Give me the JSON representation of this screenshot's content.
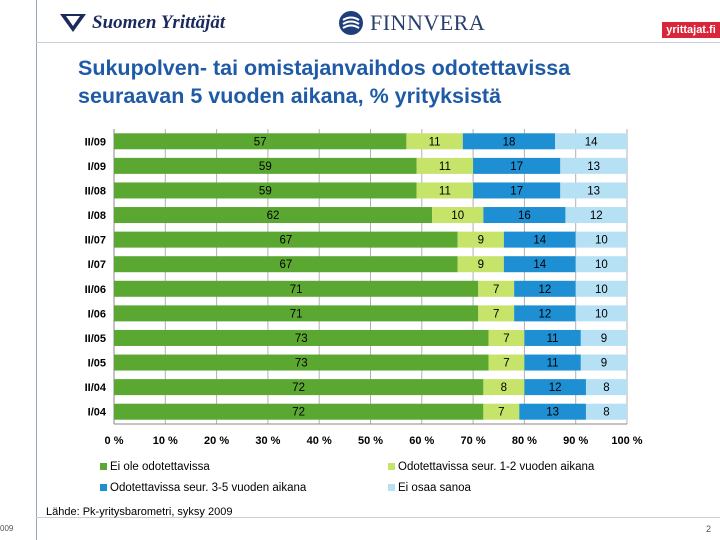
{
  "header": {
    "logo_left": "Suomen Yrittäjät",
    "logo_center": "FINNVERA",
    "logo_right": "yrittajat.fi"
  },
  "title": "Sukupolven- tai omistajanvaihdos odotettavissa seuraavan 5 vuoden aikana, % yrityksistä",
  "source": "Lähde: Pk-yritysbarometri, syksy 2009",
  "footer": {
    "left": "009",
    "right": "2"
  },
  "colors": {
    "series": [
      "#5aa832",
      "#c6e36a",
      "#1d8fd2",
      "#b6e1f5"
    ],
    "grid": "#b0b0b0"
  },
  "chart_data": {
    "type": "bar",
    "orientation": "horizontal",
    "stacked": true,
    "categories": [
      "II/09",
      "I/09",
      "II/08",
      "I/08",
      "II/07",
      "I/07",
      "II/06",
      "I/06",
      "II/05",
      "I/05",
      "II/04",
      "I/04"
    ],
    "series": [
      {
        "name": "Ei ole odotettavissa",
        "values": [
          57,
          59,
          59,
          62,
          67,
          67,
          71,
          71,
          73,
          73,
          72,
          72
        ]
      },
      {
        "name": "Odotettavissa seur. 1-2 vuoden aikana",
        "values": [
          11,
          11,
          11,
          10,
          9,
          9,
          7,
          7,
          7,
          7,
          8,
          7
        ]
      },
      {
        "name": "Odotettavissa seur. 3-5 vuoden aikana",
        "values": [
          18,
          17,
          17,
          16,
          14,
          14,
          12,
          12,
          11,
          11,
          12,
          13
        ]
      },
      {
        "name": "Ei osaa sanoa",
        "values": [
          14,
          13,
          13,
          12,
          10,
          10,
          10,
          10,
          9,
          9,
          8,
          8
        ]
      }
    ],
    "x_ticks": [
      "0 %",
      "10 %",
      "20 %",
      "30 %",
      "40 %",
      "50 %",
      "60 %",
      "70 %",
      "80 %",
      "90 %",
      "100 %"
    ],
    "xlim": [
      0,
      100
    ],
    "grid": true,
    "legend_position": "bottom"
  }
}
